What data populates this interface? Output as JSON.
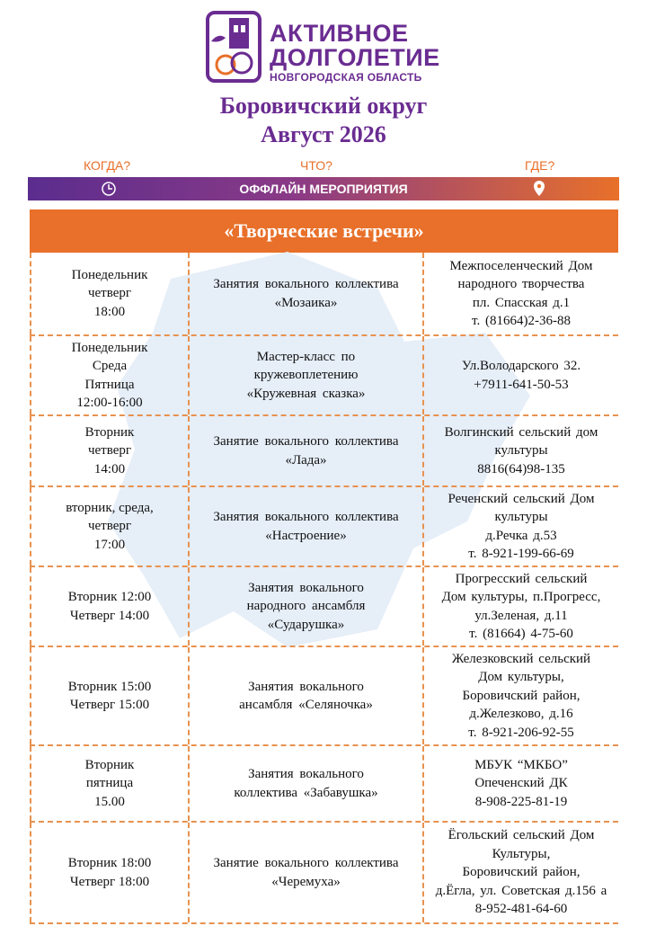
{
  "logo": {
    "line1": "АКТИВНОЕ",
    "line2": "ДОЛГОЛЕТИЕ",
    "line3": "НОВГОРОДСКАЯ ОБЛАСТЬ"
  },
  "header": {
    "title": "Боровичский округ",
    "subtitle": "Август 2026"
  },
  "columns": [
    "КОГДА?",
    "ЧТО?",
    "ГДЕ?"
  ],
  "banner": "ОФФЛАЙН МЕРОПРИЯТИЯ",
  "table": {
    "title": "«Творческие встречи»",
    "rows": [
      [
        [
          "Понедельник",
          "четверг",
          "18:00"
        ],
        [
          "Занятия вокального коллектива",
          "«Мозаика»"
        ],
        [
          "Межпоселенческий Дом",
          "народного творчества",
          "пл. Спасская д.1",
          "т. (81664)2-36-88"
        ]
      ],
      [
        [
          "Понедельник",
          "Среда",
          "Пятница",
          "12:00-16:00"
        ],
        [
          "Мастер-класс по",
          "кружевоплетению",
          "«Кружевная сказка»"
        ],
        [
          "Ул.Володарского 32.",
          "+7911-641-50-53"
        ]
      ],
      [
        [
          "Вторник",
          "четверг",
          "14:00"
        ],
        [
          "Занятие вокального коллектива",
          "«Лада»"
        ],
        [
          "Волгинский сельский дом",
          "культуры",
          "8816(64)98-135"
        ]
      ],
      [
        [
          "вторник, среда,",
          "четверг",
          "17:00"
        ],
        [
          "Занятия вокального коллектива",
          "«Настроение»"
        ],
        [
          "Реченский сельский Дом",
          "культуры",
          "д.Речка д.53",
          "т. 8-921-199-66-69"
        ]
      ],
      [
        [
          "Вторник 12:00",
          "Четверг 14:00"
        ],
        [
          "Занятия вокального",
          "народного ансамбля",
          "«Сударушка»"
        ],
        [
          "Прогресский сельский",
          "Дом культуры, п.Прогресс,",
          "ул.Зеленая, д.11",
          "т. (81664) 4-75-60"
        ]
      ],
      [
        [
          "Вторник 15:00",
          "Четверг 15:00"
        ],
        [
          "Занятия вокального",
          "ансамбля «Селяночка»"
        ],
        [
          "Железковский сельский",
          "Дом культуры,",
          "Боровичский район,",
          "д.Железково, д.16",
          "т. 8-921-206-92-55"
        ]
      ],
      [
        [
          "Вторник",
          "пятница",
          "15.00"
        ],
        [
          "Занятия вокального",
          "коллектива «Забавушка»"
        ],
        [
          "МБУК “МКБО”",
          "Опеченский ДК",
          "8-908-225-81-19"
        ]
      ],
      [
        [
          "Вторник 18:00",
          "Четверг 18:00"
        ],
        [
          "Занятие вокального коллектива",
          "«Черемуха»"
        ],
        [
          "Ёгольский сельский Дом",
          "Культуры,",
          "Боровичский район,",
          "д.Ёгла, ул. Советская д.156 а",
          "8-952-481-64-60"
        ]
      ]
    ]
  }
}
